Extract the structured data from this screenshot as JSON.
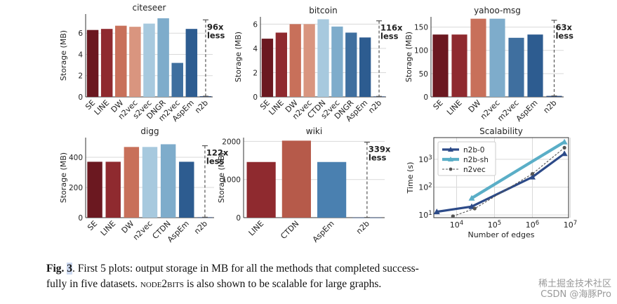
{
  "figure": {
    "caption_label": "Fig.",
    "caption_number": "3",
    "caption_text_1": ". First 5 plots: output storage in MB for all the methods that completed success-",
    "caption_text_2a": "fully in five datasets. ",
    "caption_system": "node2bits",
    "caption_text_2b": " is also shown to be scalable for large graphs.",
    "watermark_line1": "稀土掘金技术社区",
    "watermark_line2": "CSDN @海豚Pro"
  },
  "colors": {
    "SE": "#6b1820",
    "LINE": "#8f2a2f",
    "DW": "#c8705a",
    "n2vec": "#d9957f",
    "s2vec": "#a7c9de",
    "DNGR": "#7eaccb",
    "CTDN": "#6e9fc4",
    "m2vec": "#3f6f9f",
    "AspEm": "#2d5c90",
    "n2b": "#2d4b7a",
    "n2b-0": "#2c4a88",
    "n2b-sh": "#5aaec7",
    "n2vec-line": "#555555"
  },
  "chart_data": [
    {
      "type": "bar",
      "title": "citeseer",
      "ylabel": "Storage (MB)",
      "ylim": [
        0,
        7.8
      ],
      "yticks": [
        0,
        2,
        4,
        6
      ],
      "categories": [
        "SE",
        "LINE",
        "DW",
        "n2vec",
        "s2vec",
        "DNGR",
        "m2vec",
        "AspEm",
        "n2b"
      ],
      "values": [
        6.3,
        6.4,
        6.7,
        6.6,
        6.9,
        7.4,
        3.2,
        6.4,
        0.065
      ],
      "bar_colors": [
        "#6b1820",
        "#8f2a2f",
        "#c8705a",
        "#d9957f",
        "#a7c9de",
        "#7eaccb",
        "#3f6f9f",
        "#2d5c90",
        "#2d4b7a"
      ],
      "annotation": [
        "96x",
        "less"
      ]
    },
    {
      "type": "bar",
      "title": "bitcoin",
      "ylabel": "Storage (MB)",
      "ylim": [
        0,
        6.6
      ],
      "yticks": [
        0,
        2,
        4,
        6
      ],
      "categories": [
        "SE",
        "LINE",
        "DW",
        "n2vec",
        "CTDN",
        "s2vec",
        "DNGR",
        "AspEm",
        "n2b"
      ],
      "values": [
        4.8,
        5.3,
        6.0,
        6.0,
        6.4,
        5.8,
        5.3,
        4.9,
        0.042
      ],
      "bar_colors": [
        "#6b1820",
        "#8f2a2f",
        "#c8705a",
        "#d9957f",
        "#a7c9de",
        "#7eaccb",
        "#3f6f9f",
        "#2d5c90",
        "#2d4b7a"
      ],
      "annotation": [
        "116x",
        "less"
      ]
    },
    {
      "type": "bar",
      "title": "yahoo-msg",
      "ylabel": "Storage (MB)",
      "ylim": [
        0,
        172
      ],
      "yticks": [
        0,
        50,
        100,
        150
      ],
      "categories": [
        "SE",
        "LINE",
        "DW",
        "n2vec",
        "m2vec",
        "AspEm",
        "n2b"
      ],
      "values": [
        134,
        134,
        168,
        168,
        127,
        134,
        2.1
      ],
      "bar_colors": [
        "#6b1820",
        "#8f2a2f",
        "#c8705a",
        "#7eaccb",
        "#3f6f9f",
        "#2d5c90",
        "#2d4b7a"
      ],
      "annotation": [
        "63x",
        "less"
      ]
    },
    {
      "type": "bar",
      "title": "digg",
      "ylabel": "Storage (MB)",
      "ylim": [
        0,
        530
      ],
      "yticks": [
        0,
        200,
        400
      ],
      "categories": [
        "SE",
        "LINE",
        "DW",
        "n2vec",
        "CTDN",
        "AspEm",
        "n2b"
      ],
      "values": [
        370,
        370,
        468,
        468,
        486,
        370,
        3.0
      ],
      "bar_colors": [
        "#6b1820",
        "#8f2a2f",
        "#c8705a",
        "#a7c9de",
        "#7eaccb",
        "#2d5c90",
        "#2d4b7a"
      ],
      "annotation": [
        "122x",
        "less"
      ]
    },
    {
      "type": "bar",
      "title": "wiki",
      "ylabel": "Storage (MB)",
      "ylim": [
        0,
        2100
      ],
      "yticks": [
        0,
        1000,
        2000
      ],
      "categories": [
        "LINE",
        "CTDN",
        "AspEm",
        "n2b"
      ],
      "values": [
        1460,
        2020,
        1460,
        4.3
      ],
      "bar_colors": [
        "#8f2a2f",
        "#b65a4a",
        "#4a80b0",
        "#2d4b7a"
      ],
      "annotation": [
        "339x",
        "less"
      ]
    },
    {
      "type": "line",
      "title": "Scalability",
      "xlabel": "Number of edges",
      "ylabel": "Time (s)",
      "xscale": "log",
      "yscale": "log",
      "xlim": [
        2500,
        9000000
      ],
      "ylim": [
        8,
        6000
      ],
      "xticks": [
        10000,
        100000,
        1000000,
        10000000
      ],
      "xtick_labels": [
        "10^4",
        "10^5",
        "10^6",
        "10^7"
      ],
      "yticks": [
        10,
        100,
        1000
      ],
      "ytick_labels": [
        "10^1",
        "10^2",
        "10^3"
      ],
      "legend_position": "top-left",
      "series": [
        {
          "name": "n2b-0",
          "x": [
            3000,
            25000,
            1000000,
            7000000
          ],
          "y": [
            13,
            20,
            230,
            1600
          ]
        },
        {
          "name": "n2b-sh",
          "x": [
            25000,
            7000000
          ],
          "y": [
            40,
            4200
          ]
        },
        {
          "name": "n2vec",
          "x": [
            8000,
            30000,
            1000000,
            7000000
          ],
          "y": [
            9,
            17,
            300,
            2600
          ]
        }
      ]
    }
  ]
}
